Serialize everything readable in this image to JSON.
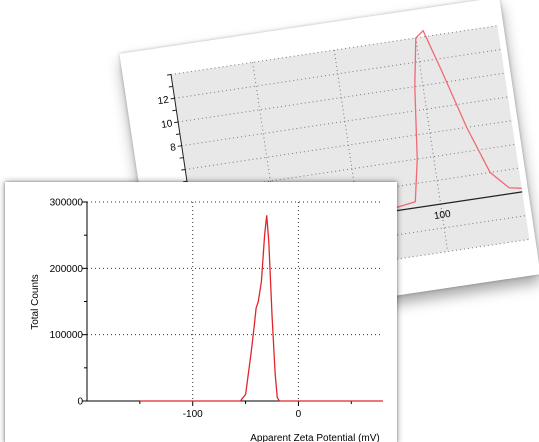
{
  "colors": {
    "series": "#e0262c",
    "grid": "#000000",
    "back_plot_bg": "#e8e8e8",
    "back_series": "#f06a74"
  },
  "chart_data": [
    {
      "type": "line",
      "title": "",
      "xlabel": "",
      "ylabel": "",
      "xlim": [
        -20,
        140
      ],
      "ylim": [
        -4,
        14
      ],
      "xticks": [
        100
      ],
      "yticks": [
        8,
        10,
        12
      ],
      "grid": true,
      "series": [
        {
          "x": [
            -20,
            60,
            88,
            92,
            96,
            100,
            104,
            110,
            118,
            126,
            134,
            140
          ],
          "y": [
            -1,
            -0.2,
            0.5,
            4,
            10,
            14,
            14.5,
            11,
            6,
            2,
            0.5,
            0.3
          ]
        }
      ]
    },
    {
      "type": "line",
      "title": "",
      "xlabel": "Apparent Zeta Potential (mV)",
      "ylabel": "Total Counts",
      "xlim": [
        -200,
        80
      ],
      "ylim": [
        0,
        300000
      ],
      "xticks": [
        -100,
        0
      ],
      "yticks": [
        0,
        100000,
        200000,
        300000
      ],
      "grid": true,
      "series": [
        {
          "x": [
            -150,
            -55,
            -50,
            -45,
            -42,
            -40,
            -38,
            -35,
            -32,
            -30,
            -28,
            -25,
            -22,
            -20,
            -18,
            80
          ],
          "y": [
            0,
            0,
            10000,
            70000,
            110000,
            140000,
            150000,
            180000,
            250000,
            280000,
            240000,
            130000,
            40000,
            5000,
            0,
            0
          ]
        }
      ]
    }
  ]
}
